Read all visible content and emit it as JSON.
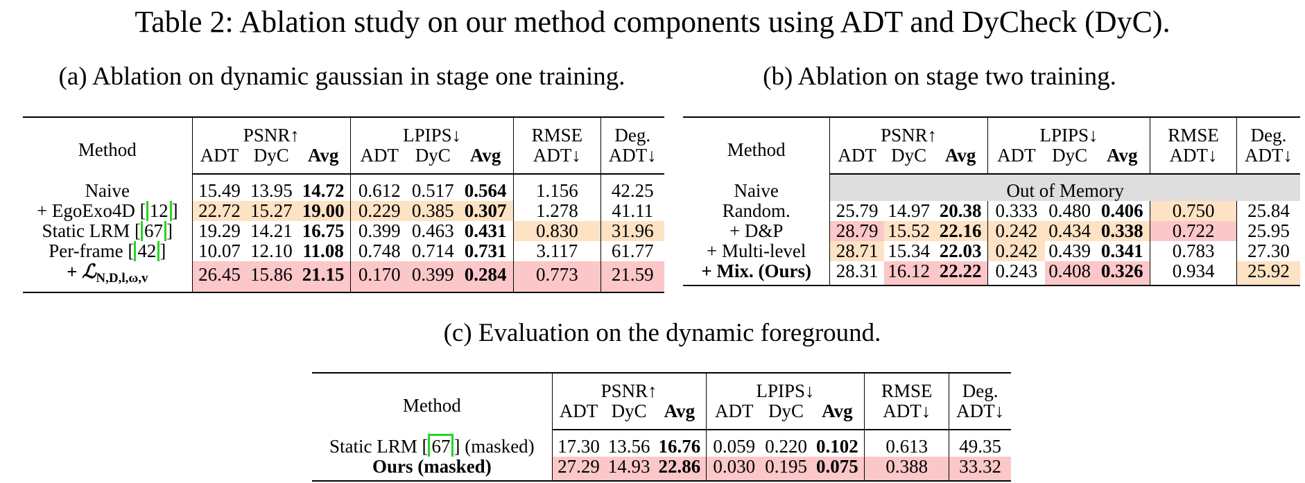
{
  "title": "Table 2: Ablation study on our method components using ADT and DyCheck (DyC).",
  "captions": {
    "a": "(a) Ablation on dynamic gaussian in stage one training.",
    "b": "(b) Ablation on stage two training.",
    "c": "(c) Evaluation on the dynamic foreground."
  },
  "header": {
    "method": "Method",
    "psnr": "PSNR↑",
    "lpips": "LPIPS↓",
    "rmse": "RMSE",
    "deg": "Deg.",
    "adt": "ADT",
    "dyc": "DyC",
    "avg": "Avg",
    "adt_down": "ADT↓"
  },
  "colors": {
    "highlight_best": "#fcc7c8",
    "highlight_second": "#fde2c4",
    "ref_box": "#24d624",
    "oom_bg": "#dedede"
  },
  "table_a": {
    "rows": [
      {
        "method_text": "Naive",
        "ref": "",
        "suffix": "",
        "cells": [
          "15.49",
          "13.95",
          "14.72",
          "0.612",
          "0.517",
          "0.564",
          "1.156",
          "42.25"
        ]
      },
      {
        "method_text": "+ EgoExo4D [",
        "ref": "12",
        "suffix": "]",
        "cells": [
          "22.72",
          "15.27",
          "19.00",
          "0.229",
          "0.385",
          "0.307",
          "1.278",
          "41.11"
        ]
      },
      {
        "method_text": "Static LRM [",
        "ref": "67",
        "suffix": "]",
        "cells": [
          "19.29",
          "14.21",
          "16.75",
          "0.399",
          "0.463",
          "0.431",
          "0.830",
          "31.96"
        ]
      },
      {
        "method_text": "Per-frame [",
        "ref": "42",
        "suffix": "]",
        "cells": [
          "10.07",
          "12.10",
          "11.08",
          "0.748",
          "0.714",
          "0.731",
          "3.117",
          "61.77"
        ]
      },
      {
        "method_prefix": "+ ",
        "method_symbol": "ℒ",
        "method_sub": "N,D,l,ω,v",
        "cells": [
          "26.45",
          "15.86",
          "21.15",
          "0.170",
          "0.399",
          "0.284",
          "0.773",
          "21.59"
        ]
      }
    ]
  },
  "table_b": {
    "rows": [
      {
        "method": "Naive",
        "oom": "Out of Memory"
      },
      {
        "method": "Random.",
        "cells": [
          "25.79",
          "14.97",
          "20.38",
          "0.333",
          "0.480",
          "0.406",
          "0.750",
          "25.84"
        ]
      },
      {
        "method": "+ D&P",
        "cells": [
          "28.79",
          "15.52",
          "22.16",
          "0.242",
          "0.434",
          "0.338",
          "0.722",
          "25.95"
        ]
      },
      {
        "method": "+ Multi-level",
        "cells": [
          "28.71",
          "15.34",
          "22.03",
          "0.242",
          "0.439",
          "0.341",
          "0.783",
          "27.30"
        ]
      },
      {
        "method": "+ Mix. (Ours)",
        "cells": [
          "28.31",
          "16.12",
          "22.22",
          "0.243",
          "0.408",
          "0.326",
          "0.934",
          "25.92"
        ]
      }
    ]
  },
  "table_c": {
    "rows": [
      {
        "method_text": "Static LRM [",
        "ref": "67",
        "suffix": "] (masked)",
        "cells": [
          "17.30",
          "13.56",
          "16.76",
          "0.059",
          "0.220",
          "0.102",
          "0.613",
          "49.35"
        ]
      },
      {
        "method": "Ours (masked)",
        "cells": [
          "27.29",
          "14.93",
          "22.86",
          "0.030",
          "0.195",
          "0.075",
          "0.388",
          "33.32"
        ]
      }
    ]
  }
}
